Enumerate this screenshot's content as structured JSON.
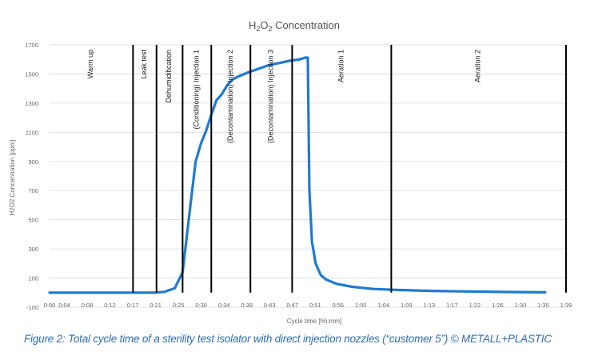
{
  "chart_data": {
    "type": "line",
    "title_parts": [
      "H",
      "2",
      "O",
      "2",
      " Concentration"
    ],
    "title": "H2O2 Concentration",
    "xlabel": "Cycle time [hh:mm]",
    "ylabel": "H2O2 Concentration [ppm]",
    "ylim": [
      -100,
      1700
    ],
    "y_ticks": [
      -100,
      100,
      300,
      500,
      700,
      900,
      1100,
      1300,
      1500,
      1700
    ],
    "y_tick_labels": [
      "-100",
      "100",
      "300",
      "500",
      "700",
      "900",
      "1100",
      "1300",
      "1500",
      "1700"
    ],
    "x_tick_labels": [
      "0:00",
      "0:04",
      "0:08",
      "0:12",
      "0:17",
      "0:21",
      "0:25",
      "0:30",
      "0:34",
      "0:38",
      "0:43",
      "0:47",
      "0:51",
      "0:56",
      "1:00",
      "1:04",
      "1:09",
      "1:13",
      "1:17",
      "1:22",
      "1:26",
      "1:30",
      "1:35",
      "1:39"
    ],
    "xlim_min": [
      0,
      99
    ],
    "grid": "horizontal",
    "series": [
      {
        "name": "H2O2 Concentration",
        "color": "#1f7ad1",
        "x": [
          0,
          10,
          20,
          22,
          24,
          25.5,
          27,
          28,
          29,
          30,
          31,
          32,
          33,
          34,
          35,
          36,
          38,
          40,
          42,
          44,
          46,
          48,
          49,
          49.5,
          49.8,
          50.3,
          51,
          52,
          53,
          55,
          58,
          62,
          67,
          73,
          80,
          88,
          95
        ],
        "y": [
          0,
          0,
          0,
          5,
          30,
          140,
          600,
          900,
          1020,
          1110,
          1220,
          1320,
          1360,
          1420,
          1460,
          1480,
          1510,
          1535,
          1560,
          1575,
          1590,
          1600,
          1612,
          1612,
          700,
          350,
          200,
          120,
          90,
          60,
          40,
          25,
          18,
          12,
          8,
          4,
          2
        ]
      }
    ],
    "phase_lines": [
      {
        "x": 16,
        "label": "Warm up"
      },
      {
        "x": 20.5,
        "label": "Leak test"
      },
      {
        "x": 25.5,
        "label": "Dehumidification"
      },
      {
        "x": 31,
        "label": "(Conditioning) Injection 1"
      },
      {
        "x": 38.5,
        "label": "(Decontamination) Injection 2"
      },
      {
        "x": 46.5,
        "label": "(Decontamination) Injection 3"
      },
      {
        "x": 65.5,
        "label": "Aeration 1"
      },
      {
        "x": 99,
        "label": "Aeration 2"
      }
    ],
    "line_color": "#000000"
  },
  "caption": "Figure 2: Total cycle time of a sterility test isolator with direct injection nozzles (“customer 5”) © METALL+PLASTIC"
}
